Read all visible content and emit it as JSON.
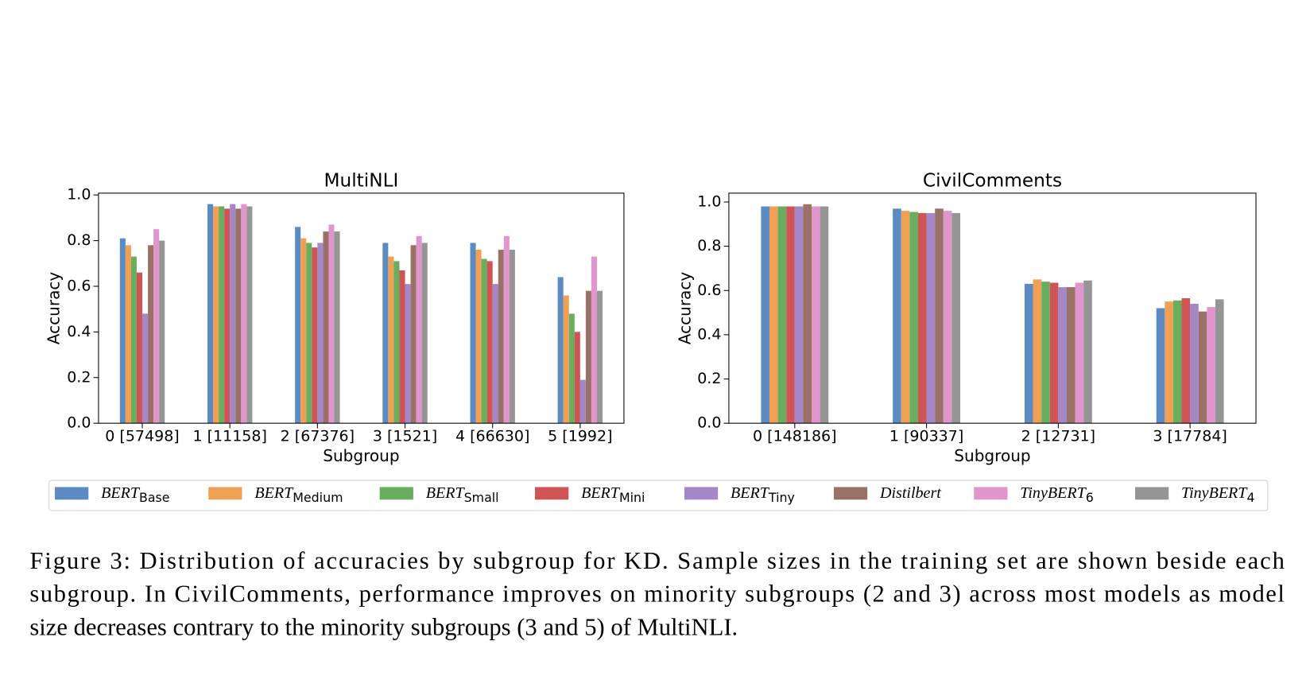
{
  "chart_data": [
    {
      "type": "bar",
      "title": "MultiNLI",
      "xlabel": "Subgroup",
      "ylabel": "Accuracy",
      "categories": [
        "0 [57498]",
        "1 [11158]",
        "2 [67376]",
        "3 [1521]",
        "4 [66630]",
        "5 [1992]"
      ],
      "ylim": [
        0,
        1.008
      ],
      "yticks": [
        {
          "value": 0,
          "label": "0.0"
        },
        0.2,
        0.4,
        0.6,
        0.8,
        {
          "value": 1,
          "label": "1.0"
        }
      ],
      "series": [
        {
          "name": "BERT",
          "subscript": "Base",
          "color": "#5b8bc2",
          "values": [
            0.81,
            0.96,
            0.86,
            0.79,
            0.79,
            0.64
          ]
        },
        {
          "name": "BERT",
          "subscript": "Medium",
          "color": "#f0a055",
          "values": [
            0.78,
            0.95,
            0.81,
            0.73,
            0.76,
            0.56
          ]
        },
        {
          "name": "BERT",
          "subscript": "Small",
          "color": "#69ae5e",
          "values": [
            0.73,
            0.95,
            0.79,
            0.71,
            0.72,
            0.48
          ]
        },
        {
          "name": "BERT",
          "subscript": "Mini",
          "color": "#cf5455",
          "values": [
            0.66,
            0.94,
            0.77,
            0.67,
            0.71,
            0.4
          ]
        },
        {
          "name": "BERT",
          "subscript": "Tiny",
          "color": "#a487c6",
          "values": [
            0.48,
            0.96,
            0.79,
            0.61,
            0.61,
            0.19
          ]
        },
        {
          "name": "Distilbert",
          "color": "#9a7166",
          "values": [
            0.78,
            0.94,
            0.84,
            0.78,
            0.76,
            0.58
          ]
        },
        {
          "name": "TinyBERT",
          "subscript": "6",
          "color": "#e095cc",
          "values": [
            0.85,
            0.96,
            0.87,
            0.82,
            0.82,
            0.73
          ]
        },
        {
          "name": "TinyBERT",
          "subscript": "4",
          "color": "#959595",
          "values": [
            0.8,
            0.95,
            0.84,
            0.79,
            0.76,
            0.58
          ]
        }
      ]
    },
    {
      "type": "bar",
      "title": "CivilComments",
      "xlabel": "Subgroup",
      "ylabel": "Accuracy",
      "categories": [
        "0 [148186]",
        "1 [90337]",
        "2 [12731]",
        "3 [17784]"
      ],
      "ylim": [
        0,
        1.04
      ],
      "yticks": [
        {
          "value": 0,
          "label": "0.0"
        },
        0.2,
        0.4,
        0.6,
        0.8,
        {
          "value": 1,
          "label": "1.0"
        }
      ],
      "series": [
        {
          "color": "#5b8bc2",
          "values": [
            0.98,
            0.97,
            0.63,
            0.52
          ]
        },
        {
          "color": "#f0a055",
          "values": [
            0.98,
            0.96,
            0.65,
            0.55
          ]
        },
        {
          "color": "#69ae5e",
          "values": [
            0.98,
            0.955,
            0.64,
            0.555
          ]
        },
        {
          "color": "#cf5455",
          "values": [
            0.98,
            0.95,
            0.635,
            0.565
          ]
        },
        {
          "color": "#a487c6",
          "values": [
            0.98,
            0.95,
            0.615,
            0.54
          ]
        },
        {
          "color": "#9a7166",
          "values": [
            0.99,
            0.97,
            0.615,
            0.505
          ]
        },
        {
          "color": "#e095cc",
          "values": [
            0.98,
            0.96,
            0.635,
            0.525
          ]
        },
        {
          "color": "#959595",
          "values": [
            0.98,
            0.95,
            0.645,
            0.56
          ]
        }
      ]
    }
  ],
  "caption": [
    "Figure 3: Distribution of accuracies by subgroup for KD. Sample sizes in the training set are shown beside each",
    "subgroup. In CivilComments, performance improves on minority subgroups (2 and 3) across most models as model",
    "size decreases contrary to the minority subgroups (3 and 5) of MultiNLI."
  ]
}
